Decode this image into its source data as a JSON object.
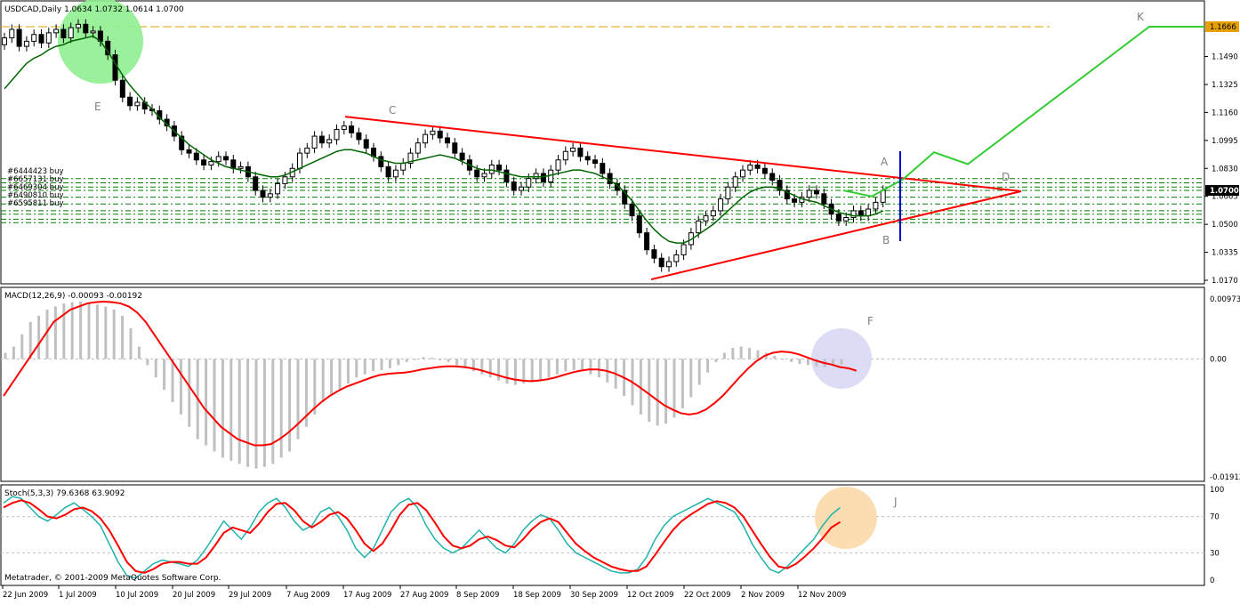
{
  "colors": {
    "background": "#ffffff",
    "candle": "#000000",
    "ma_line": "#006400",
    "macd_signal": "#ff0000",
    "macd_histogram": "#c0c0c0",
    "stoch_main": "#20b2aa",
    "stoch_signal": "#ff0000",
    "triangle": "#ff0000",
    "projection": "#33cc33",
    "target_line": "#e6a000",
    "vertical_marker": "#0000cc",
    "order_lines": "#008000",
    "current_price_box": "#000000",
    "target_price_box": "#e6a000"
  },
  "main_panel": {
    "title": "USDCAD,Daily  1.0634 1.0732 1.0614 1.0700",
    "price_labels": [
      "1.1490",
      "1.1325",
      "1.1160",
      "1.0995",
      "1.0830",
      "1.0665",
      "1.0500",
      "1.0335",
      "1.0170"
    ],
    "current_price": "1.0700",
    "target_price": "1.1666",
    "order_labels": [
      "#6444423 buy",
      "#6657131 buy",
      "#6469304 buy",
      "#6490810 buy",
      "#6595811 buy"
    ],
    "point_labels": {
      "A": "A",
      "B": "B",
      "C": "C",
      "D": "D",
      "E": "E",
      "K": "K"
    }
  },
  "macd_panel": {
    "title": "MACD(12,26,9) -0.00093 -0.00192",
    "scale_labels": [
      "0.00973",
      "0.00",
      "-0.01912"
    ],
    "point_label": "F"
  },
  "stoch_panel": {
    "title": "Stoch(5,3,3) 79.6368 63.9092",
    "scale_labels": [
      "100",
      "70",
      "30",
      "0"
    ],
    "point_label": "J"
  },
  "footer": "Metatrader, © 2001-2009 MetaQuotes Software Corp.",
  "x_axis_labels": [
    "22 Jun 2009",
    "1 Jul 2009",
    "10 Jul 2009",
    "20 Jul 2009",
    "29 Jul 2009",
    "7 Aug 2009",
    "17 Aug 2009",
    "27 Aug 2009",
    "8 Sep 2009",
    "18 Sep 2009",
    "30 Sep 2009",
    "12 Oct 2009",
    "22 Oct 2009",
    "2 Nov 2009",
    "12 Nov 2009"
  ],
  "chart_data": {
    "type": "line",
    "symbol": "USDCAD",
    "timeframe": "Daily",
    "last_bar": {
      "open": 1.0634,
      "high": 1.0732,
      "low": 1.0614,
      "close": 1.07
    },
    "close_series": [
      1.16,
      1.165,
      1.155,
      1.158,
      1.162,
      1.157,
      1.163,
      1.165,
      1.16,
      1.166,
      1.168,
      1.163,
      1.164,
      1.158,
      1.15,
      1.135,
      1.125,
      1.12,
      1.122,
      1.118,
      1.117,
      1.112,
      1.108,
      1.102,
      1.094,
      1.092,
      1.088,
      1.085,
      1.087,
      1.09,
      1.088,
      1.083,
      1.084,
      1.078,
      1.07,
      1.066,
      1.068,
      1.074,
      1.078,
      1.083,
      1.092,
      1.095,
      1.102,
      1.098,
      1.1,
      1.106,
      1.108,
      1.104,
      1.1,
      1.095,
      1.09,
      1.084,
      1.078,
      1.082,
      1.086,
      1.092,
      1.098,
      1.103,
      1.105,
      1.101,
      1.098,
      1.092,
      1.088,
      1.082,
      1.078,
      1.08,
      1.085,
      1.082,
      1.075,
      1.07,
      1.072,
      1.077,
      1.08,
      1.075,
      1.082,
      1.088,
      1.093,
      1.095,
      1.09,
      1.088,
      1.086,
      1.08,
      1.074,
      1.07,
      1.062,
      1.055,
      1.045,
      1.035,
      1.03,
      1.025,
      1.028,
      1.032,
      1.038,
      1.045,
      1.052,
      1.055,
      1.058,
      1.065,
      1.072,
      1.078,
      1.082,
      1.085,
      1.083,
      1.08,
      1.076,
      1.07,
      1.065,
      1.063,
      1.066,
      1.07,
      1.068,
      1.062,
      1.056,
      1.052,
      1.054,
      1.058,
      1.055,
      1.059,
      1.063,
      1.07
    ],
    "ma_series": [
      1.13,
      1.135,
      1.14,
      1.145,
      1.148,
      1.15,
      1.153,
      1.155,
      1.156,
      1.158,
      1.159,
      1.16,
      1.161,
      1.158,
      1.152,
      1.145,
      1.138,
      1.132,
      1.127,
      1.122,
      1.118,
      1.113,
      1.109,
      1.105,
      1.101,
      1.097,
      1.094,
      1.091,
      1.088,
      1.086,
      1.084,
      1.083,
      1.082,
      1.081,
      1.08,
      1.079,
      1.078,
      1.078,
      1.079,
      1.081,
      1.083,
      1.085,
      1.087,
      1.089,
      1.091,
      1.093,
      1.094,
      1.094,
      1.093,
      1.092,
      1.09,
      1.088,
      1.087,
      1.086,
      1.086,
      1.087,
      1.088,
      1.089,
      1.09,
      1.091,
      1.09,
      1.089,
      1.087,
      1.085,
      1.083,
      1.082,
      1.082,
      1.081,
      1.08,
      1.079,
      1.078,
      1.078,
      1.078,
      1.078,
      1.079,
      1.08,
      1.081,
      1.082,
      1.082,
      1.081,
      1.08,
      1.078,
      1.076,
      1.073,
      1.069,
      1.064,
      1.058,
      1.052,
      1.047,
      1.043,
      1.04,
      1.039,
      1.039,
      1.041,
      1.044,
      1.047,
      1.05,
      1.054,
      1.058,
      1.062,
      1.066,
      1.069,
      1.071,
      1.072,
      1.072,
      1.071,
      1.069,
      1.067,
      1.065,
      1.064,
      1.063,
      1.061,
      1.059,
      1.057,
      1.056,
      1.055,
      1.055,
      1.055,
      1.056,
      1.058
    ],
    "macd_signal": [
      -0.006,
      -0.004,
      -0.002,
      0.0,
      0.002,
      0.004,
      0.006,
      0.007,
      0.008,
      0.0085,
      0.009,
      0.0092,
      0.0093,
      0.0092,
      0.009,
      0.0085,
      0.0075,
      0.006,
      0.004,
      0.002,
      0.0,
      -0.002,
      -0.004,
      -0.006,
      -0.008,
      -0.0095,
      -0.011,
      -0.012,
      -0.013,
      -0.0135,
      -0.014,
      -0.014,
      -0.0138,
      -0.013,
      -0.012,
      -0.0108,
      -0.0095,
      -0.0082,
      -0.007,
      -0.006,
      -0.0052,
      -0.0045,
      -0.004,
      -0.0035,
      -0.003,
      -0.0026,
      -0.0024,
      -0.0023,
      -0.0022,
      -0.002,
      -0.0017,
      -0.0015,
      -0.0013,
      -0.0012,
      -0.0012,
      -0.0013,
      -0.0015,
      -0.0018,
      -0.0022,
      -0.0026,
      -0.003,
      -0.0033,
      -0.0035,
      -0.0036,
      -0.0035,
      -0.0033,
      -0.003,
      -0.0026,
      -0.0022,
      -0.0019,
      -0.0017,
      -0.0017,
      -0.0019,
      -0.0023,
      -0.0029,
      -0.0036,
      -0.0045,
      -0.0055,
      -0.0065,
      -0.0075,
      -0.0082,
      -0.0088,
      -0.009,
      -0.0088,
      -0.0082,
      -0.0072,
      -0.006,
      -0.0045,
      -0.003,
      -0.0016,
      -0.0004,
      0.0005,
      0.001,
      0.0012,
      0.0011,
      0.0008,
      0.0003,
      -0.0002,
      -0.0006,
      -0.0009,
      -0.0013,
      -0.0015,
      -0.0019
    ],
    "macd_histogram": [
      0.001,
      0.002,
      0.004,
      0.006,
      0.007,
      0.008,
      0.0085,
      0.009,
      0.0092,
      0.0093,
      0.009,
      0.0088,
      0.0085,
      0.008,
      0.007,
      0.005,
      0.002,
      -0.001,
      -0.003,
      -0.005,
      -0.007,
      -0.009,
      -0.011,
      -0.013,
      -0.014,
      -0.015,
      -0.016,
      -0.0165,
      -0.017,
      -0.0175,
      -0.0178,
      -0.0175,
      -0.017,
      -0.016,
      -0.015,
      -0.013,
      -0.011,
      -0.009,
      -0.007,
      -0.006,
      -0.005,
      -0.004,
      -0.003,
      -0.0025,
      -0.002,
      -0.0018,
      -0.0015,
      -0.001,
      -0.0005,
      0.0,
      0.0003,
      0.0002,
      -0.0002,
      -0.0005,
      -0.001,
      -0.0015,
      -0.002,
      -0.0025,
      -0.003,
      -0.0035,
      -0.004,
      -0.0042,
      -0.004,
      -0.0038,
      -0.0035,
      -0.003,
      -0.0025,
      -0.002,
      -0.0018,
      -0.002,
      -0.0025,
      -0.003,
      -0.0038,
      -0.0048,
      -0.006,
      -0.0075,
      -0.009,
      -0.0102,
      -0.0108,
      -0.0105,
      -0.0095,
      -0.008,
      -0.0062,
      -0.0042,
      -0.0022,
      -0.0005,
      0.001,
      0.0018,
      0.002,
      0.0018,
      0.0014,
      0.001,
      0.0005,
      0.0,
      -0.0005,
      -0.0008,
      -0.001,
      -0.0012,
      -0.0013,
      -0.0011,
      -0.0009
    ],
    "stoch_main": [
      85,
      92,
      90,
      80,
      70,
      65,
      72,
      80,
      85,
      78,
      70,
      60,
      40,
      20,
      5,
      2,
      10,
      18,
      22,
      20,
      18,
      15,
      22,
      35,
      50,
      65,
      55,
      45,
      58,
      75,
      85,
      90,
      80,
      65,
      55,
      60,
      75,
      80,
      70,
      55,
      35,
      25,
      35,
      55,
      75,
      85,
      90,
      80,
      60,
      45,
      35,
      30,
      35,
      45,
      55,
      45,
      35,
      30,
      40,
      55,
      65,
      72,
      68,
      55,
      40,
      30,
      25,
      20,
      15,
      10,
      8,
      8,
      12,
      25,
      45,
      60,
      70,
      75,
      80,
      85,
      90,
      85,
      80,
      75,
      60,
      40,
      25,
      12,
      8,
      15,
      25,
      35,
      45,
      60,
      72,
      80
    ],
    "stoch_signal": [
      80,
      85,
      88,
      85,
      78,
      70,
      68,
      72,
      78,
      80,
      76,
      68,
      55,
      38,
      20,
      10,
      8,
      12,
      18,
      20,
      20,
      18,
      18,
      25,
      38,
      52,
      58,
      55,
      52,
      62,
      75,
      84,
      85,
      77,
      65,
      58,
      64,
      72,
      75,
      68,
      55,
      40,
      32,
      40,
      55,
      72,
      83,
      85,
      77,
      63,
      48,
      38,
      35,
      38,
      45,
      48,
      44,
      38,
      36,
      45,
      56,
      64,
      68,
      64,
      52,
      40,
      32,
      25,
      20,
      15,
      12,
      10,
      10,
      15,
      28,
      42,
      55,
      65,
      72,
      78,
      84,
      87,
      85,
      80,
      70,
      55,
      40,
      26,
      15,
      13,
      18,
      26,
      35,
      46,
      58,
      64
    ],
    "triangle_upper": [
      {
        "x": "17 Aug 2009",
        "y": 1.1135
      },
      {
        "x": "D",
        "y": 1.0695
      }
    ],
    "triangle_lower": [
      {
        "x": "12 Oct 2009",
        "y": 1.0175
      },
      {
        "x": "D",
        "y": 1.0695
      }
    ],
    "projection_levels": [
      1.07,
      1.0665,
      1.0765,
      1.0925,
      1.0855,
      1.1666,
      1.1666
    ],
    "target_level": 1.1666,
    "y_range": [
      1.017,
      1.1666
    ],
    "macd_range": [
      -0.01912,
      0.00973
    ],
    "stoch_range": [
      0,
      100
    ]
  }
}
